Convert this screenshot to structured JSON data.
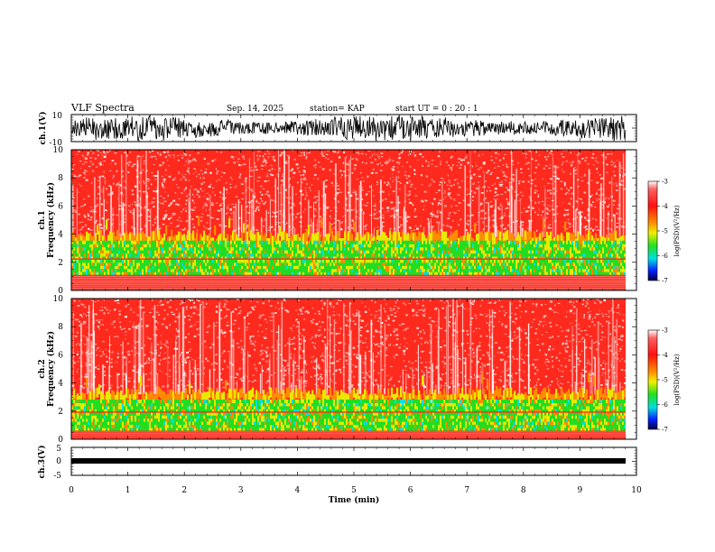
{
  "header": {
    "title": "VLF Spectra",
    "date": "Sep. 14, 2025",
    "station": "station= KAP",
    "start": "start  UT =   0  : 20 : 1"
  },
  "colors": {
    "red": "#ff2a1e",
    "orange": "#ff8c00",
    "yellow": "#e8e800",
    "green": "#22dd22",
    "cyan": "#00e0e0",
    "blue": "#0030ff",
    "navy": "#000060"
  },
  "chart_data": [
    {
      "type": "line",
      "name": "ch1-waveform",
      "ylabel": "ch.1(V)",
      "ylim": [
        -10,
        10
      ],
      "yticks": [
        "10",
        "-10"
      ],
      "xlim": [
        0,
        10
      ]
    },
    {
      "type": "heatmap",
      "name": "ch1-spectrogram",
      "ylabel_top": "ch.1",
      "ylabel": "Frequency (kHz)",
      "ylim": [
        0,
        10
      ],
      "yticks": [
        "0",
        "2",
        "4",
        "6",
        "8",
        "10"
      ],
      "xlim": [
        0,
        10
      ],
      "band_edges_khz": {
        "low_red": 0.6,
        "green_low": 1.1,
        "green_high": 3.5,
        "line_khz": 2.2
      }
    },
    {
      "type": "heatmap",
      "name": "ch2-spectrogram",
      "ylabel_top": "ch.2",
      "ylabel": "Frequency (kHz)",
      "ylim": [
        0,
        10
      ],
      "yticks": [
        "0",
        "2",
        "4",
        "6",
        "8",
        "10"
      ],
      "xlim": [
        0,
        10
      ],
      "band_edges_khz": {
        "low_red": 0.5,
        "green_low": 0.6,
        "green_high": 2.9,
        "line_khz": 1.9
      }
    },
    {
      "type": "line",
      "name": "ch3-waveform",
      "ylabel": "ch.3(V)",
      "ylim": [
        -5,
        5
      ],
      "yticks": [
        "5",
        "0",
        "-5"
      ],
      "xlim": [
        0,
        10
      ]
    }
  ],
  "xaxis": {
    "label": "Time  (min)",
    "ticks": [
      "0",
      "1",
      "2",
      "3",
      "4",
      "5",
      "6",
      "7",
      "8",
      "9",
      "10"
    ]
  },
  "colorbar": {
    "label": "log(PSD)(V²/Hz)",
    "ticks": [
      "-3",
      "-4",
      "-5",
      "-6",
      "-7"
    ],
    "range": [
      -7,
      -3
    ]
  }
}
